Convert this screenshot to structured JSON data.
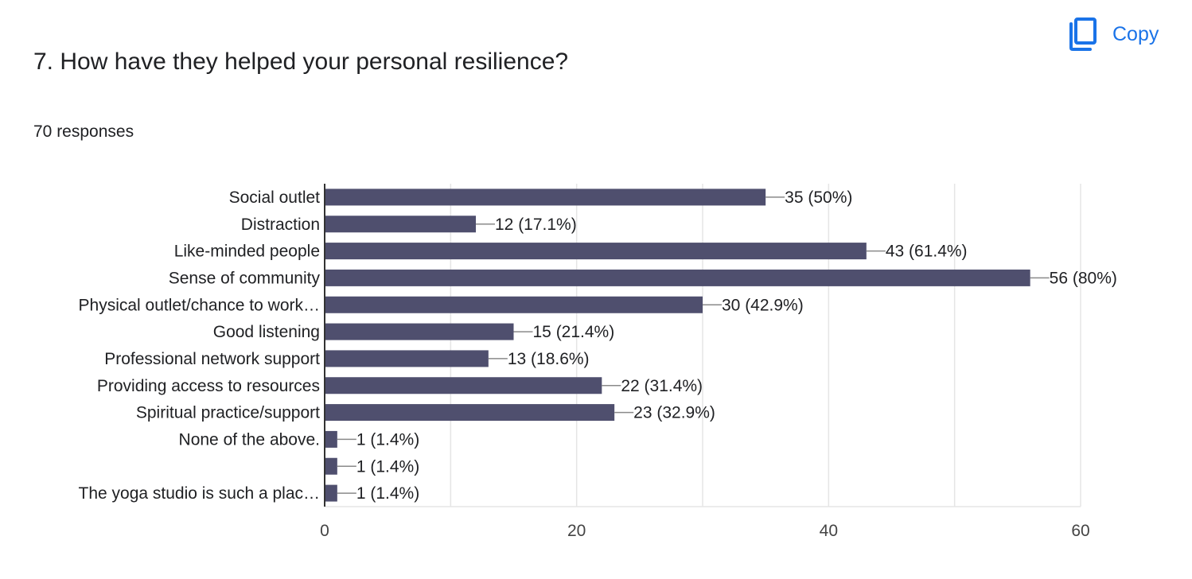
{
  "question": {
    "title": "7. How have they helped your personal resilience?",
    "responses": "70 responses"
  },
  "copy_button": {
    "label": "Copy",
    "icon": "copy-icon",
    "color": "#1a73e8"
  },
  "colors": {
    "bar": "#4f4f6e",
    "grid": "#e5e5e5",
    "axis": "#333333",
    "text": "#202124"
  },
  "chart_data": {
    "type": "bar",
    "orientation": "horizontal",
    "categories": [
      "Social outlet",
      "Distraction",
      "Like-minded people",
      "Sense of community",
      "Physical outlet/chance to work…",
      "Good listening",
      "Professional network support",
      "Providing access to resources",
      "Spiritual practice/support",
      "None of the above.",
      "",
      "The yoga studio is such a plac…"
    ],
    "values": [
      35,
      12,
      43,
      56,
      30,
      15,
      13,
      22,
      23,
      1,
      1,
      1
    ],
    "data_labels": [
      "35 (50%)",
      "12 (17.1%)",
      "43 (61.4%)",
      "56 (80%)",
      "30 (42.9%)",
      "15 (21.4%)",
      "13 (18.6%)",
      "22 (31.4%)",
      "23 (32.9%)",
      "1 (1.4%)",
      "1 (1.4%)",
      "1 (1.4%)"
    ],
    "xlim": [
      0,
      60
    ],
    "x_ticks": [
      0,
      20,
      40,
      60
    ],
    "grid": true
  }
}
